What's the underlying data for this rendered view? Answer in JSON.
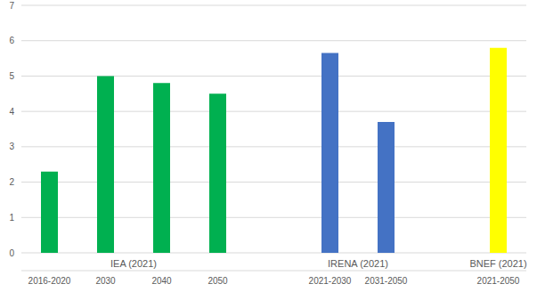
{
  "chart_data": {
    "type": "bar",
    "groups": [
      {
        "name": "IEA (2021)",
        "color": "#00b050",
        "categories": [
          "2016-2020",
          "2030",
          "2040",
          "2050"
        ],
        "values": [
          2.3,
          5.0,
          4.8,
          4.5
        ]
      },
      {
        "name": "IRENA (2021)",
        "color": "#4472c4",
        "categories": [
          "2021-2030",
          "2031-2050"
        ],
        "values": [
          5.65,
          3.7
        ]
      },
      {
        "name": "BNEF (2021)",
        "color": "#ffff00",
        "categories": [
          "2021-2050"
        ],
        "values": [
          5.8
        ]
      }
    ],
    "ylim": [
      0,
      7
    ],
    "yticks": [
      0,
      1,
      2,
      3,
      4,
      5,
      6,
      7
    ],
    "grid": true
  }
}
